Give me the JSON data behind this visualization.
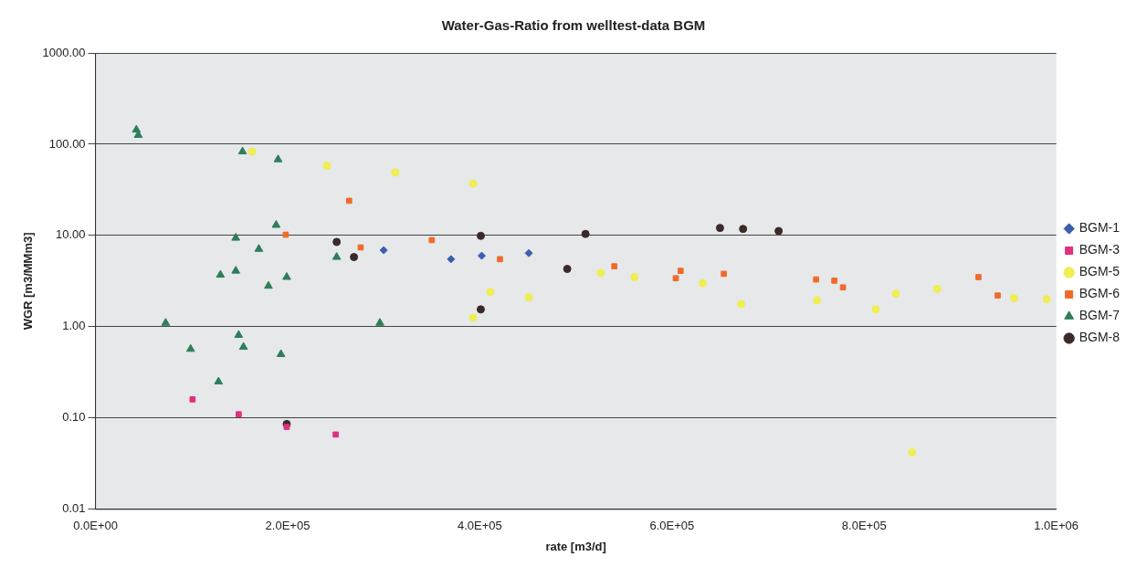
{
  "chart_data": {
    "type": "scatter",
    "title": "Water-Gas-Ratio from welltest-data BGM",
    "xlabel": "rate [m3/d]",
    "ylabel": "WGR [m3/MMm3]",
    "log": "y",
    "grid": "y",
    "legend": "right",
    "xlim": [
      0,
      1000000
    ],
    "xticks": [
      {
        "value": 0,
        "label": "0.0E+00"
      },
      {
        "value": 200000,
        "label": "2.0E+05"
      },
      {
        "value": 400000,
        "label": "4.0E+05"
      },
      {
        "value": 600000,
        "label": "6.0E+05"
      },
      {
        "value": 800000,
        "label": "8.0E+05"
      },
      {
        "value": 1000000,
        "label": "1.0E+06"
      }
    ],
    "ylim": [
      0.01,
      1000
    ],
    "yticks": [
      {
        "value": 0.01,
        "label": "0.01"
      },
      {
        "value": 0.1,
        "label": "0.10"
      },
      {
        "value": 1,
        "label": "1.00"
      },
      {
        "value": 10,
        "label": "10.00"
      },
      {
        "value": 100,
        "label": "100.00"
      },
      {
        "value": 1000,
        "label": "1000.00"
      }
    ],
    "series": [
      {
        "name": "BGM-1",
        "color": "#3b5fae",
        "marker": "diamond",
        "x": [
          300000,
          370000,
          402000,
          451000
        ],
        "values": [
          6.9,
          5.5,
          6.0,
          6.4
        ]
      },
      {
        "name": "BGM-3",
        "color": "#e0307f",
        "marker": "square",
        "x": [
          101000,
          149000,
          199000,
          250000
        ],
        "values": [
          0.16,
          0.11,
          0.08,
          0.066
        ]
      },
      {
        "name": "BGM-5",
        "color": "#f0ee50",
        "marker": "circle",
        "x": [
          163000,
          241000,
          312000,
          393000,
          411000,
          393000,
          451000,
          526000,
          561000,
          632000,
          672000,
          751000,
          812000,
          833000,
          876000,
          956000,
          990000,
          850000
        ],
        "values": [
          83,
          58,
          49,
          37,
          2.4,
          1.26,
          2.1,
          3.9,
          3.5,
          3.0,
          1.77,
          1.95,
          1.55,
          2.3,
          2.6,
          2.06,
          2.0,
          0.042
        ]
      },
      {
        "name": "BGM-6",
        "color": "#f06a2a",
        "marker": "square",
        "x": [
          264000,
          198000,
          276000,
          350000,
          421000,
          540000,
          609000,
          604000,
          654000,
          750000,
          769000,
          778000,
          919000,
          939000
        ],
        "values": [
          24,
          10.2,
          7.4,
          8.9,
          5.5,
          4.6,
          4.1,
          3.4,
          3.8,
          3.3,
          3.2,
          2.7,
          3.5,
          2.2
        ]
      },
      {
        "name": "BGM-7",
        "color": "#2e7d5b",
        "marker": "triangle",
        "x": [
          42500,
          44500,
          153000,
          190000,
          188000,
          146000,
          170000,
          130000,
          146000,
          199000,
          180000,
          73000,
          296000,
          149000,
          154000,
          99000,
          193000,
          128000,
          251000
        ],
        "values": [
          144,
          126,
          83,
          68,
          13,
          9.4,
          7.1,
          3.7,
          4.1,
          3.5,
          2.8,
          1.1,
          1.1,
          0.81,
          0.6,
          0.57,
          0.5,
          0.25,
          5.8
        ]
      },
      {
        "name": "BGM-8",
        "color": "#3a2a2a",
        "marker": "circle",
        "x": [
          251000,
          269000,
          401000,
          510000,
          491000,
          401000,
          650000,
          674000,
          711000,
          199000
        ],
        "values": [
          8.5,
          5.8,
          9.9,
          10.4,
          4.3,
          1.55,
          12.1,
          11.8,
          11.2,
          0.086
        ]
      }
    ]
  }
}
